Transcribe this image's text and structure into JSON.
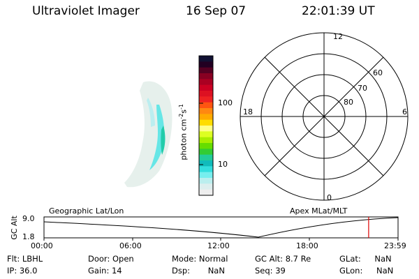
{
  "header": {
    "instrument": "Ultraviolet Imager",
    "date": "16 Sep 07",
    "time": "22:01:39 UT"
  },
  "colorbar": {
    "label": "photon cm",
    "label_exp1": "-2",
    "label_mid": "s",
    "label_exp2": "-1",
    "tick_high": "100",
    "tick_low": "10",
    "colors": [
      "#111133",
      "#220022",
      "#550022",
      "#880022",
      "#aa0022",
      "#cc0022",
      "#dd1122",
      "#ee2222",
      "#ff5511",
      "#ff8811",
      "#ffaa00",
      "#ffdd00",
      "#ffff88",
      "#ddff22",
      "#aaee00",
      "#66dd00",
      "#33cc33",
      "#22cc99",
      "#11bbbb",
      "#33dddd",
      "#77eeee",
      "#bbeeee",
      "#ddeeee",
      "#eeeeee"
    ]
  },
  "polar": {
    "mlt_top": "12",
    "mlt_left": "18",
    "mlt_right": "6",
    "mlt_bottom": "0",
    "lat_60": "60",
    "lat_70": "70",
    "lat_80": "80"
  },
  "timeline": {
    "left_title": "Geographic Lat/Lon",
    "right_title": "Apex  MLat/MLT",
    "axis_label": "GC Alt",
    "y_top": "9.0",
    "y_bottom": "1.8",
    "x_ticks": [
      "00:00",
      "06:00",
      "12:00",
      "18:00",
      "23:59"
    ],
    "marker_time_fraction": 0.917,
    "marker_color": "#dd0000"
  },
  "status": {
    "filter_label": "Flt:",
    "filter_value": "LBHL",
    "ip_label": "IP:",
    "ip_value": "36.0",
    "door_label": "Door:",
    "door_value": "Open",
    "gain_label": "Gain:",
    "gain_value": "14",
    "mode_label": "Mode:",
    "mode_value": "Normal",
    "dsp_label": "Dsp:",
    "dsp_value": "NaN",
    "gcalt_label": "GC Alt:",
    "gcalt_value": "8.7 Re",
    "seq_label": "Seq:",
    "seq_value": "39",
    "glat_label": "GLat:",
    "glat_value": "NaN",
    "glon_label": "GLon:",
    "glon_value": "NaN"
  }
}
